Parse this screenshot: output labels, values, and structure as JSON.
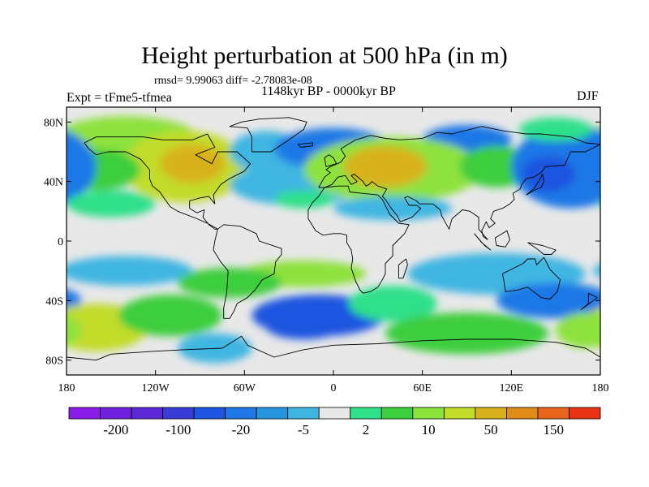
{
  "title": "Height perturbation at 500 hPa (in m)",
  "stats": "rmsd= 9.99063 diff= -2.78083e-08",
  "experiment": "Expt = tFme5-tfmea",
  "period": "1148kyr BP - 0000kyr BP",
  "season": "DJF",
  "map_data": {
    "projection": "cylindrical equidistant",
    "lon_range": [
      -180,
      180
    ],
    "lat_range": [
      -90,
      90
    ],
    "lat_ticks": [
      {
        "lat": 80,
        "label": "80N"
      },
      {
        "lat": 40,
        "label": "40N"
      },
      {
        "lat": 0,
        "label": "0"
      },
      {
        "lat": -40,
        "label": "40S"
      },
      {
        "lat": -80,
        "label": "80S"
      }
    ],
    "lon_ticks": [
      {
        "lon": -180,
        "label": "180"
      },
      {
        "lon": -120,
        "label": "120W"
      },
      {
        "lon": -60,
        "label": "60W"
      },
      {
        "lon": 0,
        "label": "0"
      },
      {
        "lon": 60,
        "label": "60E"
      },
      {
        "lon": 120,
        "label": "120E"
      },
      {
        "lon": 180,
        "label": "180"
      }
    ]
  },
  "colorbar": {
    "colors": [
      "#8a1ee8",
      "#7021e0",
      "#5a28d6",
      "#3a3ad6",
      "#1f55e0",
      "#1f78e6",
      "#2596de",
      "#3fb6e2",
      "#e8e8e8",
      "#2ee08a",
      "#3cce3c",
      "#8ee23c",
      "#c2dc2a",
      "#d8b21e",
      "#e08c1a",
      "#e8641a",
      "#e83214"
    ],
    "labels": [
      "-200",
      "-100",
      "-20",
      "-5",
      "2",
      "10",
      "50",
      "150"
    ]
  },
  "field_blobs": [
    {
      "lon": -140,
      "lat": 68,
      "rx": 50,
      "ry": 16,
      "v": 5
    },
    {
      "lon": -100,
      "lat": 50,
      "rx": 42,
      "ry": 24,
      "v": 6
    },
    {
      "lon": -95,
      "lat": 52,
      "rx": 22,
      "ry": 13,
      "v": 7
    },
    {
      "lon": -160,
      "lat": 48,
      "rx": 30,
      "ry": 14,
      "v": 4
    },
    {
      "lon": -45,
      "lat": 60,
      "rx": 25,
      "ry": 14,
      "v": 2
    },
    {
      "lon": -25,
      "lat": 38,
      "rx": 45,
      "ry": 14,
      "v": 2
    },
    {
      "lon": 0,
      "lat": 62,
      "rx": 40,
      "ry": 14,
      "v": 1
    },
    {
      "lon": 90,
      "lat": 68,
      "rx": 30,
      "ry": 10,
      "v": 1
    },
    {
      "lon": 40,
      "lat": 48,
      "rx": 60,
      "ry": 22,
      "v": 5
    },
    {
      "lon": 35,
      "lat": 50,
      "rx": 28,
      "ry": 14,
      "v": 7
    },
    {
      "lon": 110,
      "lat": 50,
      "rx": 25,
      "ry": 14,
      "v": 4
    },
    {
      "lon": 160,
      "lat": 50,
      "rx": 40,
      "ry": 28,
      "v": 1
    },
    {
      "lon": 145,
      "lat": 45,
      "rx": 18,
      "ry": 12,
      "v": 0
    },
    {
      "lon": 150,
      "lat": 75,
      "rx": 25,
      "ry": 8,
      "v": 3
    },
    {
      "lon": -20,
      "lat": 28,
      "rx": 20,
      "ry": 6,
      "v": 3
    },
    {
      "lon": 40,
      "lat": 22,
      "rx": 40,
      "ry": 8,
      "v": 2
    },
    {
      "lon": -150,
      "lat": 25,
      "rx": 30,
      "ry": 9,
      "v": 3
    },
    {
      "lon": -140,
      "lat": -20,
      "rx": 45,
      "ry": 10,
      "v": 2
    },
    {
      "lon": -20,
      "lat": -22,
      "rx": 42,
      "ry": 9,
      "v": 5
    },
    {
      "lon": -70,
      "lat": -28,
      "rx": 35,
      "ry": 10,
      "v": 4
    },
    {
      "lon": 110,
      "lat": -22,
      "rx": 60,
      "ry": 14,
      "v": 2
    },
    {
      "lon": 150,
      "lat": -40,
      "rx": 40,
      "ry": 12,
      "v": 1
    },
    {
      "lon": -10,
      "lat": -50,
      "rx": 45,
      "ry": 14,
      "v": 0
    },
    {
      "lon": -20,
      "lat": -58,
      "rx": 25,
      "ry": 8,
      "v": 0
    },
    {
      "lon": 40,
      "lat": -42,
      "rx": 30,
      "ry": 12,
      "v": 3
    },
    {
      "lon": -160,
      "lat": -58,
      "rx": 35,
      "ry": 16,
      "v": 6
    },
    {
      "lon": -110,
      "lat": -50,
      "rx": 35,
      "ry": 14,
      "v": 4
    },
    {
      "lon": 90,
      "lat": -62,
      "rx": 55,
      "ry": 14,
      "v": 4
    },
    {
      "lon": 170,
      "lat": -60,
      "rx": 20,
      "ry": 12,
      "v": 5
    },
    {
      "lon": -80,
      "lat": -72,
      "rx": 25,
      "ry": 10,
      "v": 2
    }
  ],
  "coastlines": [
    [
      [
        -168,
        66
      ],
      [
        -160,
        70
      ],
      [
        -140,
        70
      ],
      [
        -128,
        70
      ],
      [
        -115,
        68
      ],
      [
        -95,
        68
      ],
      [
        -85,
        72
      ],
      [
        -80,
        63
      ],
      [
        -93,
        58
      ],
      [
        -82,
        52
      ],
      [
        -78,
        60
      ],
      [
        -65,
        60
      ],
      [
        -56,
        52
      ],
      [
        -60,
        47
      ],
      [
        -66,
        44
      ],
      [
        -70,
        42
      ],
      [
        -76,
        38
      ],
      [
        -81,
        31
      ],
      [
        -80,
        25
      ],
      [
        -84,
        30
      ],
      [
        -90,
        29
      ],
      [
        -97,
        27
      ],
      [
        -97,
        22
      ],
      [
        -92,
        19
      ],
      [
        -87,
        21
      ],
      [
        -88,
        16
      ],
      [
        -84,
        11
      ],
      [
        -80,
        8
      ],
      [
        -78,
        8
      ],
      [
        -85,
        12
      ],
      [
        -92,
        15
      ],
      [
        -105,
        20
      ],
      [
        -110,
        23
      ],
      [
        -115,
        30
      ],
      [
        -117,
        33
      ],
      [
        -122,
        37
      ],
      [
        -124,
        42
      ],
      [
        -124,
        48
      ],
      [
        -130,
        55
      ],
      [
        -140,
        60
      ],
      [
        -152,
        60
      ],
      [
        -160,
        58
      ],
      [
        -165,
        62
      ],
      [
        -168,
        66
      ]
    ],
    [
      [
        -78,
        8
      ],
      [
        -74,
        11
      ],
      [
        -63,
        10
      ],
      [
        -52,
        5
      ],
      [
        -50,
        0
      ],
      [
        -44,
        -2
      ],
      [
        -35,
        -5
      ],
      [
        -35,
        -9
      ],
      [
        -39,
        -14
      ],
      [
        -40,
        -22
      ],
      [
        -48,
        -26
      ],
      [
        -53,
        -33
      ],
      [
        -58,
        -38
      ],
      [
        -65,
        -42
      ],
      [
        -67,
        -47
      ],
      [
        -70,
        -52
      ],
      [
        -74,
        -52
      ],
      [
        -74,
        -45
      ],
      [
        -72,
        -35
      ],
      [
        -71,
        -20
      ],
      [
        -76,
        -14
      ],
      [
        -81,
        -6
      ],
      [
        -80,
        0
      ],
      [
        -78,
        8
      ]
    ],
    [
      [
        -10,
        36
      ],
      [
        -6,
        43
      ],
      [
        -2,
        46
      ],
      [
        -5,
        48
      ],
      [
        -2,
        50
      ],
      [
        5,
        53
      ],
      [
        8,
        57
      ],
      [
        5,
        62
      ],
      [
        15,
        68
      ],
      [
        25,
        71
      ],
      [
        35,
        69
      ],
      [
        45,
        68
      ],
      [
        60,
        69
      ],
      [
        70,
        73
      ],
      [
        80,
        72
      ],
      [
        100,
        77
      ],
      [
        115,
        74
      ],
      [
        130,
        72
      ],
      [
        140,
        72
      ],
      [
        160,
        70
      ],
      [
        170,
        66
      ],
      [
        180,
        65
      ],
      [
        170,
        60
      ],
      [
        160,
        60
      ],
      [
        156,
        51
      ],
      [
        143,
        50
      ],
      [
        140,
        46
      ],
      [
        135,
        43
      ],
      [
        130,
        42
      ],
      [
        127,
        38
      ],
      [
        126,
        35
      ],
      [
        121,
        32
      ],
      [
        122,
        28
      ],
      [
        119,
        25
      ],
      [
        114,
        22
      ],
      [
        108,
        20
      ],
      [
        106,
        15
      ],
      [
        109,
        12
      ],
      [
        105,
        9
      ],
      [
        103,
        13
      ],
      [
        100,
        7
      ],
      [
        101,
        3
      ],
      [
        104,
        1
      ],
      [
        98,
        8
      ],
      [
        98,
        16
      ],
      [
        92,
        20
      ],
      [
        87,
        21
      ],
      [
        80,
        15
      ],
      [
        78,
        8
      ],
      [
        73,
        17
      ],
      [
        72,
        21
      ],
      [
        67,
        25
      ],
      [
        58,
        25
      ],
      [
        56,
        27
      ],
      [
        50,
        30
      ],
      [
        48,
        29
      ],
      [
        51,
        24
      ],
      [
        56,
        24
      ],
      [
        59,
        22
      ],
      [
        53,
        16
      ],
      [
        45,
        13
      ],
      [
        43,
        17
      ],
      [
        39,
        22
      ],
      [
        35,
        28
      ],
      [
        33,
        30
      ],
      [
        36,
        35
      ],
      [
        30,
        37
      ],
      [
        26,
        40
      ],
      [
        24,
        38
      ],
      [
        22,
        37
      ],
      [
        20,
        40
      ],
      [
        14,
        45
      ],
      [
        12,
        44
      ],
      [
        16,
        40
      ],
      [
        12,
        38
      ],
      [
        8,
        44
      ],
      [
        3,
        43
      ],
      [
        -1,
        38
      ],
      [
        -6,
        36
      ],
      [
        -10,
        36
      ]
    ],
    [
      [
        -17,
        21
      ],
      [
        -17,
        15
      ],
      [
        -12,
        7
      ],
      [
        -7,
        4
      ],
      [
        0,
        5
      ],
      [
        5,
        5
      ],
      [
        9,
        4
      ],
      [
        9,
        -1
      ],
      [
        12,
        -6
      ],
      [
        13,
        -12
      ],
      [
        12,
        -18
      ],
      [
        15,
        -27
      ],
      [
        18,
        -33
      ],
      [
        20,
        -35
      ],
      [
        25,
        -34
      ],
      [
        30,
        -31
      ],
      [
        33,
        -26
      ],
      [
        35,
        -22
      ],
      [
        35,
        -15
      ],
      [
        40,
        -10
      ],
      [
        40,
        -3
      ],
      [
        43,
        0
      ],
      [
        48,
        5
      ],
      [
        51,
        11
      ],
      [
        44,
        12
      ],
      [
        38,
        18
      ],
      [
        33,
        28
      ],
      [
        30,
        31
      ],
      [
        20,
        32
      ],
      [
        11,
        33
      ],
      [
        10,
        37
      ],
      [
        3,
        37
      ],
      [
        -6,
        36
      ],
      [
        -10,
        30
      ],
      [
        -14,
        26
      ],
      [
        -17,
        21
      ]
    ],
    [
      [
        44,
        -25
      ],
      [
        47,
        -25
      ],
      [
        50,
        -16
      ],
      [
        49,
        -12
      ],
      [
        44,
        -16
      ],
      [
        44,
        -25
      ]
    ],
    [
      [
        114,
        -22
      ],
      [
        122,
        -18
      ],
      [
        128,
        -15
      ],
      [
        131,
        -12
      ],
      [
        136,
        -12
      ],
      [
        137,
        -16
      ],
      [
        142,
        -11
      ],
      [
        146,
        -19
      ],
      [
        153,
        -26
      ],
      [
        151,
        -34
      ],
      [
        146,
        -39
      ],
      [
        140,
        -38
      ],
      [
        135,
        -34
      ],
      [
        131,
        -31
      ],
      [
        124,
        -33
      ],
      [
        116,
        -34
      ],
      [
        115,
        -27
      ],
      [
        114,
        -22
      ]
    ],
    [
      [
        -5,
        50
      ],
      [
        2,
        52
      ],
      [
        0,
        56
      ],
      [
        -3,
        58
      ],
      [
        -6,
        56
      ],
      [
        -5,
        50
      ]
    ],
    [
      [
        -24,
        65
      ],
      [
        -14,
        66
      ],
      [
        -14,
        64
      ],
      [
        -22,
        63
      ],
      [
        -24,
        65
      ]
    ],
    [
      [
        -55,
        60
      ],
      [
        -42,
        60
      ],
      [
        -30,
        68
      ],
      [
        -20,
        75
      ],
      [
        -18,
        80
      ],
      [
        -30,
        83
      ],
      [
        -50,
        82
      ],
      [
        -62,
        80
      ],
      [
        -70,
        77
      ],
      [
        -58,
        76
      ],
      [
        -55,
        70
      ],
      [
        -55,
        60
      ]
    ],
    [
      [
        130,
        31
      ],
      [
        135,
        34
      ],
      [
        140,
        36
      ],
      [
        142,
        40
      ],
      [
        141,
        45
      ],
      [
        139,
        41
      ],
      [
        135,
        35
      ],
      [
        130,
        31
      ]
    ],
    [
      [
        95,
        5
      ],
      [
        102,
        -3
      ],
      [
        106,
        -6
      ],
      [
        100,
        -1
      ],
      [
        95,
        5
      ]
    ],
    [
      [
        109,
        2
      ],
      [
        117,
        7
      ],
      [
        119,
        1
      ],
      [
        116,
        -4
      ],
      [
        110,
        -3
      ],
      [
        109,
        2
      ]
    ],
    [
      [
        131,
        -1
      ],
      [
        141,
        -3
      ],
      [
        150,
        -6
      ],
      [
        147,
        -9
      ],
      [
        142,
        -9
      ],
      [
        137,
        -5
      ],
      [
        131,
        -1
      ]
    ],
    [
      [
        172,
        -35
      ],
      [
        178,
        -38
      ],
      [
        174,
        -41
      ],
      [
        167,
        -46
      ],
      [
        172,
        -42
      ],
      [
        172,
        -35
      ]
    ],
    [
      [
        -180,
        -78
      ],
      [
        -160,
        -80
      ],
      [
        -150,
        -76
      ],
      [
        -120,
        -74
      ],
      [
        -100,
        -73
      ],
      [
        -75,
        -72
      ],
      [
        -62,
        -64
      ],
      [
        -58,
        -70
      ],
      [
        -40,
        -78
      ],
      [
        -20,
        -73
      ],
      [
        0,
        -70
      ],
      [
        30,
        -69
      ],
      [
        60,
        -67
      ],
      [
        90,
        -66
      ],
      [
        120,
        -66
      ],
      [
        150,
        -68
      ],
      [
        170,
        -72
      ],
      [
        180,
        -78
      ]
    ]
  ]
}
